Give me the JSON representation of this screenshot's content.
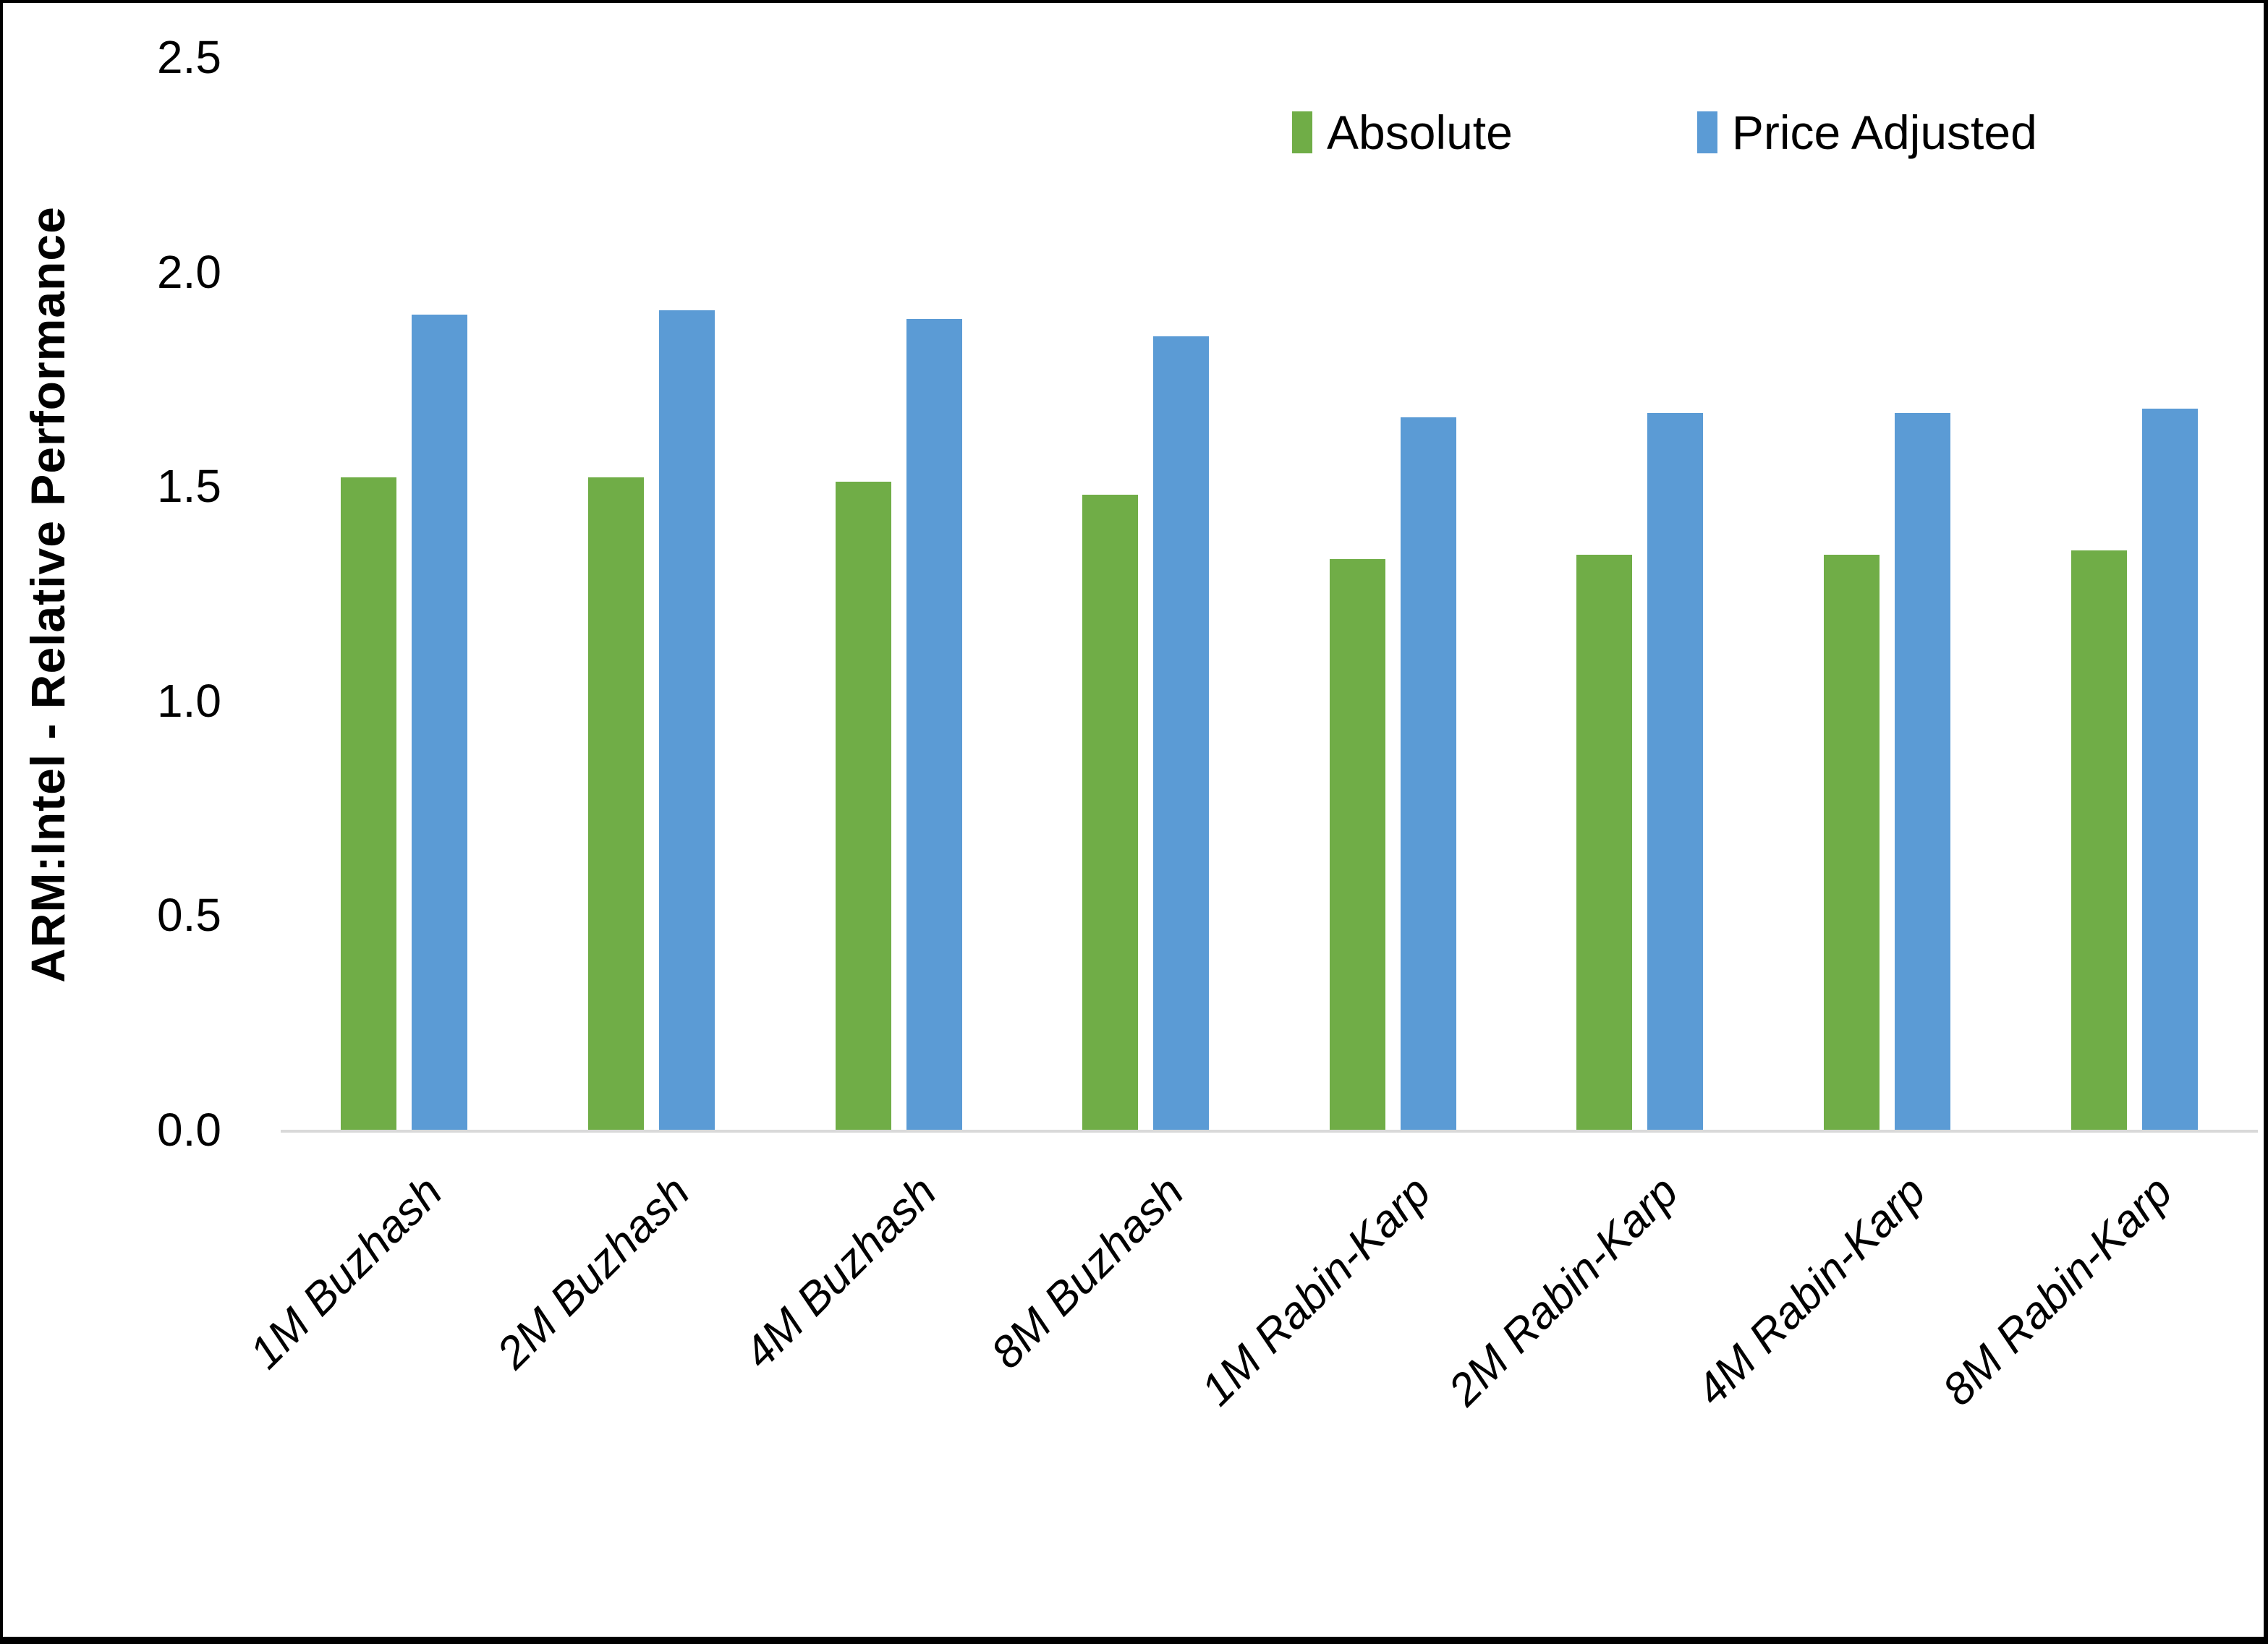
{
  "chart_data": {
    "type": "bar",
    "title": "",
    "xlabel": "",
    "ylabel": "ARM:Intel - Relative Performance",
    "ylim": [
      0,
      2.5
    ],
    "yticks": [
      "0.0",
      "0.5",
      "1.0",
      "1.5",
      "2.0",
      "2.5"
    ],
    "grid": false,
    "legend_position": "top-right",
    "categories": [
      "1M Buzhash",
      "2M Buzhash",
      "4M Buzhash",
      "8M Buzhash",
      "1M Rabin-Karp",
      "2M Rabin-Karp",
      "4M Rabin-Karp",
      "8M Rabin-Karp"
    ],
    "series": [
      {
        "name": "Absolute",
        "color": "#70AD47",
        "values": [
          1.52,
          1.52,
          1.51,
          1.48,
          1.33,
          1.34,
          1.34,
          1.35
        ]
      },
      {
        "name": "Price Adjusted",
        "color": "#5B9BD5",
        "values": [
          1.9,
          1.91,
          1.89,
          1.85,
          1.66,
          1.67,
          1.67,
          1.68
        ]
      }
    ],
    "axis_line_color": "#D9D9D9",
    "text_color": "#000000"
  }
}
